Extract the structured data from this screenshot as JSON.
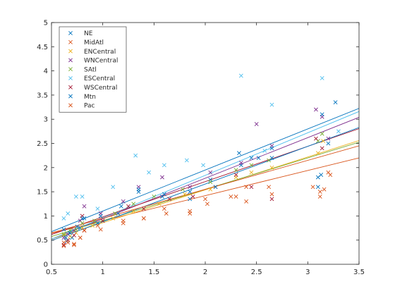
{
  "chart_data": {
    "type": "scatter",
    "title": "",
    "xlabel": "",
    "ylabel": "",
    "xlim": [
      0.5,
      3.5
    ],
    "ylim": [
      0,
      5
    ],
    "xticks": [
      0.5,
      1,
      1.5,
      2,
      2.5,
      3,
      3.5
    ],
    "xtick_labels": [
      "0.5",
      "1",
      "1.5",
      "2",
      "2.5",
      "3",
      "3.5"
    ],
    "yticks": [
      0,
      0.5,
      1,
      1.5,
      2,
      2.5,
      3,
      3.5,
      4,
      4.5,
      5
    ],
    "ytick_labels": [
      "0",
      "0.5",
      "1",
      "1.5",
      "2",
      "2.5",
      "3",
      "3.5",
      "4",
      "4.5",
      "5"
    ],
    "grid": false,
    "legend_position": "top-left",
    "marker": "x",
    "series": [
      {
        "name": "NE",
        "color": "#0072BD",
        "x": [
          0.62,
          0.65,
          0.7,
          0.78,
          0.8,
          0.95,
          1.15,
          1.35,
          1.6,
          1.85,
          2.05,
          2.35,
          2.45,
          2.65,
          3.1,
          3.13,
          3.27
        ],
        "y": [
          0.72,
          0.48,
          0.55,
          0.75,
          0.95,
          0.85,
          1.05,
          1.5,
          1.45,
          1.35,
          1.75,
          2.05,
          2.2,
          2.2,
          1.6,
          1.85,
          3.35
        ],
        "fit": [
          0.25,
          0.85
        ]
      },
      {
        "name": "MidAtl",
        "color": "#D95319",
        "x": [
          0.62,
          0.66,
          0.72,
          0.78,
          0.82,
          0.95,
          1.2,
          1.4,
          1.6,
          1.85,
          2.0,
          2.3,
          2.4,
          2.65,
          3.05,
          3.12,
          3.2
        ],
        "y": [
          0.45,
          0.5,
          0.42,
          0.55,
          0.7,
          0.8,
          0.9,
          0.95,
          1.15,
          1.05,
          1.35,
          1.4,
          1.6,
          1.45,
          1.6,
          1.5,
          1.9
        ],
        "fit": [
          0.38,
          0.52
        ]
      },
      {
        "name": "ENCentral",
        "color": "#EDB120",
        "x": [
          0.62,
          0.68,
          0.74,
          0.8,
          0.9,
          1.1,
          1.3,
          1.55,
          1.8,
          2.05,
          2.3,
          2.45,
          2.65,
          3.1,
          3.15
        ],
        "y": [
          0.6,
          0.58,
          0.65,
          0.75,
          0.8,
          0.95,
          1.1,
          1.25,
          1.45,
          1.55,
          1.8,
          1.9,
          2.0,
          2.3,
          2.55
        ],
        "fit": [
          0.18,
          0.68
        ]
      },
      {
        "name": "WNCentral",
        "color": "#7E2F8E",
        "x": [
          0.62,
          0.66,
          0.72,
          0.78,
          0.82,
          0.98,
          1.2,
          1.35,
          1.58,
          1.85,
          2.05,
          2.35,
          2.5,
          2.65,
          3.08,
          3.14,
          3.2
        ],
        "y": [
          0.55,
          0.62,
          0.7,
          0.9,
          1.2,
          1.05,
          1.3,
          1.6,
          1.8,
          1.6,
          1.9,
          2.1,
          2.9,
          2.45,
          3.2,
          3.05,
          2.6
        ],
        "fit": [
          0.1,
          0.84
        ]
      },
      {
        "name": "SAtl",
        "color": "#77AC30",
        "x": [
          0.62,
          0.68,
          0.74,
          0.8,
          0.92,
          1.12,
          1.3,
          1.5,
          1.78,
          2.05,
          2.3,
          2.45,
          2.62,
          3.1,
          3.14
        ],
        "y": [
          0.62,
          0.7,
          0.72,
          0.85,
          0.9,
          1.05,
          1.25,
          1.4,
          1.55,
          1.7,
          1.95,
          2.05,
          2.15,
          2.55,
          2.7
        ],
        "fit": [
          0.25,
          0.65
        ]
      },
      {
        "name": "ESCentral",
        "color": "#4DBEEE",
        "x": [
          0.62,
          0.66,
          0.74,
          0.8,
          0.95,
          1.1,
          1.32,
          1.45,
          1.6,
          1.82,
          1.98,
          2.35,
          2.58,
          2.65,
          3.14,
          3.3
        ],
        "y": [
          0.95,
          1.05,
          1.4,
          1.4,
          1.15,
          1.6,
          2.25,
          1.9,
          2.05,
          2.15,
          2.05,
          3.9,
          2.35,
          3.3,
          3.85,
          2.75
        ],
        "fit": [
          0.08,
          0.88
        ]
      },
      {
        "name": "WSCentral",
        "color": "#A2142F",
        "x": [
          0.62,
          0.66,
          0.72,
          0.8,
          0.82,
          1.0,
          1.25,
          1.4,
          1.65,
          1.88,
          2.1,
          2.3,
          2.45,
          2.65,
          3.08,
          3.14
        ],
        "y": [
          0.4,
          0.5,
          0.6,
          1.0,
          0.7,
          0.9,
          1.2,
          1.15,
          1.35,
          1.4,
          1.6,
          1.85,
          1.6,
          1.35,
          2.6,
          2.4
        ],
        "fit": [
          0.25,
          0.73
        ]
      },
      {
        "name": "Mtn",
        "color": "#0072BD",
        "x": [
          0.64,
          0.68,
          0.75,
          0.82,
          0.98,
          1.18,
          1.35,
          1.58,
          1.85,
          2.1,
          2.33,
          2.52,
          2.65,
          3.1,
          3.14,
          3.2
        ],
        "y": [
          0.55,
          0.65,
          0.78,
          0.95,
          1.0,
          1.2,
          1.55,
          1.4,
          1.5,
          1.6,
          2.3,
          2.2,
          2.4,
          1.8,
          3.1,
          2.5
        ],
        "fit": [
          0.1,
          0.78
        ]
      },
      {
        "name": "Pac",
        "color": "#D95319",
        "x": [
          0.62,
          0.66,
          0.72,
          0.78,
          0.82,
          0.98,
          1.2,
          1.4,
          1.62,
          1.85,
          2.02,
          2.25,
          2.4,
          2.62,
          3.12,
          3.16,
          3.22
        ],
        "y": [
          0.38,
          0.45,
          0.4,
          0.55,
          0.7,
          0.72,
          0.85,
          0.95,
          1.05,
          1.1,
          1.25,
          1.4,
          1.3,
          1.6,
          1.4,
          1.55,
          1.85
        ],
        "fit": [
          0.35,
          0.6
        ]
      }
    ]
  }
}
